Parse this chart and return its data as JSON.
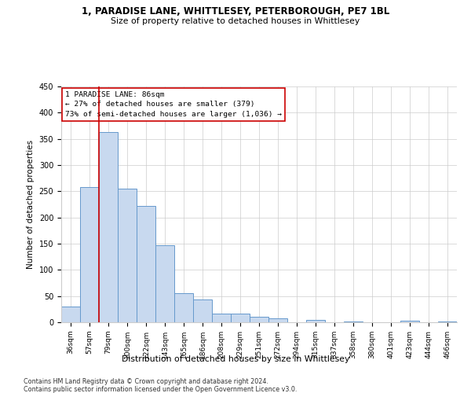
{
  "title": "1, PARADISE LANE, WHITTLESEY, PETERBOROUGH, PE7 1BL",
  "subtitle": "Size of property relative to detached houses in Whittlesey",
  "xlabel": "Distribution of detached houses by size in Whittlesey",
  "ylabel": "Number of detached properties",
  "categories": [
    "36sqm",
    "57sqm",
    "79sqm",
    "100sqm",
    "122sqm",
    "143sqm",
    "165sqm",
    "186sqm",
    "208sqm",
    "229sqm",
    "251sqm",
    "272sqm",
    "294sqm",
    "315sqm",
    "337sqm",
    "358sqm",
    "380sqm",
    "401sqm",
    "423sqm",
    "444sqm",
    "466sqm"
  ],
  "values": [
    30,
    258,
    363,
    255,
    222,
    147,
    56,
    43,
    16,
    16,
    10,
    7,
    0,
    5,
    0,
    2,
    0,
    0,
    3,
    0,
    2
  ],
  "bar_color": "#c8d9ef",
  "bar_edge_color": "#6699cc",
  "property_line_color": "#cc0000",
  "annotation_text": "1 PARADISE LANE: 86sqm\n← 27% of detached houses are smaller (379)\n73% of semi-detached houses are larger (1,036) →",
  "annotation_box_color": "#ffffff",
  "annotation_box_edge": "#cc0000",
  "ylim": [
    0,
    450
  ],
  "yticks": [
    0,
    50,
    100,
    150,
    200,
    250,
    300,
    350,
    400,
    450
  ],
  "footer_line1": "Contains HM Land Registry data © Crown copyright and database right 2024.",
  "footer_line2": "Contains public sector information licensed under the Open Government Licence v3.0.",
  "background_color": "#ffffff",
  "grid_color": "#cccccc"
}
